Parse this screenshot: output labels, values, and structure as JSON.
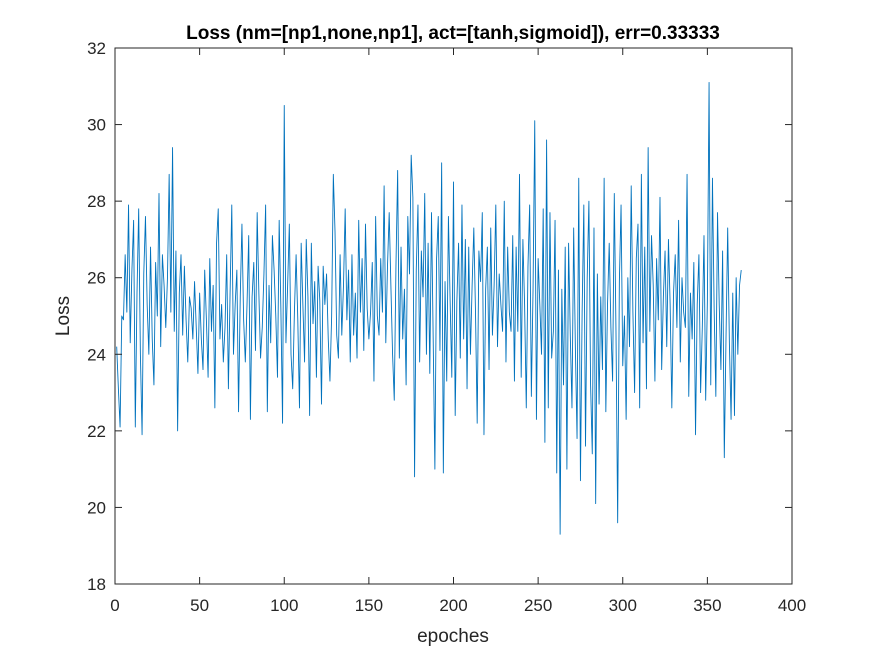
{
  "chart_data": {
    "type": "line",
    "title": "Loss (nm=[np1,none,np1], act=[tanh,sigmoid]), err=0.33333",
    "xlabel": "epoches",
    "ylabel": "Loss",
    "xlim": [
      0,
      400
    ],
    "ylim": [
      18,
      32
    ],
    "xticks": [
      "0",
      "50",
      "100",
      "150",
      "200",
      "250",
      "300",
      "350",
      "400"
    ],
    "yticks": [
      "18",
      "20",
      "22",
      "24",
      "26",
      "28",
      "30",
      "32"
    ],
    "grid": false,
    "line_color": "#0072BD",
    "series": [
      {
        "name": "Loss",
        "values": [
          24.2,
          23.1,
          22.1,
          25.0,
          24.9,
          26.6,
          25.1,
          27.9,
          24.3,
          26.2,
          27.5,
          22.1,
          25.6,
          27.8,
          24.0,
          21.9,
          26.1,
          27.6,
          25.3,
          24.0,
          26.8,
          24.4,
          23.2,
          26.4,
          25.0,
          28.2,
          24.2,
          26.6,
          25.8,
          24.7,
          26.0,
          28.7,
          25.1,
          29.4,
          24.6,
          26.7,
          22.0,
          25.6,
          26.6,
          24.5,
          26.3,
          24.9,
          23.8,
          25.5,
          25.2,
          24.4,
          25.9,
          24.7,
          23.5,
          25.6,
          24.4,
          23.6,
          26.2,
          24.9,
          23.4,
          26.5,
          24.6,
          25.8,
          22.6,
          26.9,
          27.8,
          24.4,
          25.3,
          23.8,
          24.7,
          26.6,
          23.1,
          25.6,
          27.9,
          24.0,
          25.3,
          26.2,
          22.5,
          25.5,
          27.4,
          24.9,
          23.8,
          25.3,
          27.1,
          22.3,
          25.5,
          26.4,
          24.1,
          27.7,
          25.6,
          23.9,
          24.7,
          26.1,
          27.9,
          22.5,
          25.8,
          24.3,
          27.1,
          26.2,
          25.0,
          23.4,
          27.5,
          25.2,
          22.2,
          30.5,
          24.3,
          25.8,
          27.4,
          24.0,
          23.1,
          25.1,
          26.6,
          24.9,
          22.6,
          26.9,
          25.3,
          23.8,
          27.0,
          25.5,
          22.4,
          26.9,
          24.8,
          25.9,
          23.4,
          26.3,
          25.4,
          22.7,
          26.3,
          25.3,
          26.1,
          24.4,
          23.3,
          25.0,
          28.7,
          27.2,
          24.5,
          23.9,
          26.6,
          24.5,
          25.8,
          27.8,
          24.9,
          26.2,
          23.8,
          26.6,
          24.5,
          25.6,
          23.9,
          27.5,
          25.1,
          26.5,
          24.1,
          27.4,
          25.2,
          24.4,
          25.1,
          26.4,
          23.3,
          27.6,
          25.0,
          24.5,
          26.5,
          25.1,
          28.4,
          24.3,
          26.3,
          27.7,
          25.8,
          24.0,
          22.8,
          26.3,
          28.8,
          23.9,
          26.8,
          24.4,
          25.7,
          23.2,
          27.6,
          26.1,
          29.2,
          28.1,
          20.8,
          26.2,
          27.9,
          23.8,
          26.7,
          25.5,
          28.2,
          24.0,
          26.9,
          23.5,
          27.7,
          24.4,
          21.0,
          26.5,
          27.6,
          24.1,
          29.0,
          20.9,
          25.9,
          23.3,
          27.6,
          25.4,
          23.4,
          28.5,
          22.4,
          25.4,
          26.9,
          23.9,
          27.9,
          24.4,
          27.0,
          23.1,
          26.8,
          24.0,
          25.8,
          27.3,
          25.1,
          22.2,
          26.7,
          25.9,
          27.7,
          21.9,
          25.7,
          26.8,
          23.6,
          27.3,
          24.5,
          25.8,
          27.9,
          24.2,
          26.1,
          25.3,
          24.6,
          28.0,
          23.8,
          26.8,
          25.1,
          24.6,
          27.1,
          23.3,
          26.8,
          24.6,
          28.7,
          23.4,
          27.0,
          25.3,
          22.6,
          26.3,
          27.9,
          22.9,
          25.7,
          30.1,
          22.3,
          26.5,
          25.3,
          24.0,
          27.8,
          21.7,
          29.6,
          22.6,
          27.7,
          23.9,
          24.6,
          27.5,
          20.9,
          26.2,
          19.3,
          25.7,
          23.2,
          26.8,
          21.0,
          26.9,
          24.5,
          22.6,
          27.3,
          24.2,
          21.8,
          28.6,
          20.7,
          25.1,
          27.9,
          21.6,
          26.0,
          28.0,
          23.2,
          21.4,
          27.3,
          20.1,
          26.1,
          22.7,
          25.5,
          23.6,
          28.6,
          22.5,
          25.3,
          26.9,
          24.7,
          23.3,
          28.2,
          24.6,
          19.6,
          25.9,
          27.9,
          23.7,
          25.0,
          22.3,
          26.0,
          24.2,
          28.4,
          25.1,
          23.0,
          26.5,
          27.4,
          22.6,
          28.7,
          24.3,
          26.8,
          23.1,
          29.4,
          24.6,
          27.1,
          25.8,
          23.3,
          26.5,
          24.9,
          28.1,
          23.6,
          25.5,
          26.7,
          24.2,
          27.0,
          25.3,
          22.6,
          25.6,
          26.6,
          24.7,
          27.5,
          23.8,
          26.0,
          25.1,
          24.7,
          28.7,
          22.9,
          25.6,
          24.4,
          26.4,
          21.9,
          25.3,
          26.6,
          23.0,
          24.7,
          27.1,
          22.8,
          25.4,
          31.1,
          23.2,
          28.6,
          25.2,
          22.9,
          27.7,
          25.3,
          23.6,
          26.7,
          21.3,
          24.4,
          27.3,
          24.3,
          22.3,
          25.6,
          22.4,
          26.0,
          24.0,
          25.8,
          26.2
        ]
      }
    ]
  }
}
